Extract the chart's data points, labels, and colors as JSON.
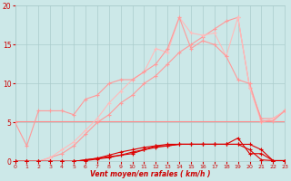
{
  "x": [
    0,
    1,
    2,
    3,
    4,
    5,
    6,
    7,
    8,
    9,
    10,
    11,
    12,
    13,
    14,
    15,
    16,
    17,
    18,
    19,
    20,
    21,
    22,
    23
  ],
  "line_diag1": [
    0,
    0,
    0,
    0.5,
    1.0,
    2.0,
    3.5,
    5.0,
    6.0,
    7.5,
    8.5,
    10.0,
    11.0,
    12.5,
    14.0,
    15.0,
    16.0,
    17.0,
    18.0,
    18.5,
    9.5,
    5.5,
    5.5,
    6.5
  ],
  "line_diag2": [
    0,
    0,
    0,
    0.5,
    1.5,
    2.5,
    4.0,
    5.5,
    7.5,
    9.0,
    10.5,
    11.5,
    14.5,
    14.0,
    18.5,
    16.5,
    16.2,
    16.5,
    13.5,
    18.5,
    9.5,
    5.0,
    5.5,
    6.5
  ],
  "line_diag3": [
    5.0,
    2.0,
    6.5,
    6.5,
    6.5,
    6.0,
    8.0,
    8.5,
    10.0,
    10.5,
    10.5,
    11.5,
    12.5,
    14.5,
    18.5,
    14.5,
    15.5,
    15.0,
    13.5,
    10.5,
    10.0,
    5.2,
    5.2,
    6.5
  ],
  "line_horiz": [
    5.2,
    5.2,
    5.2,
    5.2,
    5.2,
    5.2,
    5.2,
    5.2,
    5.2,
    5.2,
    5.2,
    5.2,
    5.2,
    5.2,
    5.2,
    5.2,
    5.2,
    5.2,
    5.2,
    5.2,
    5.2,
    5.2,
    5.2,
    5.2
  ],
  "line_low1": [
    0,
    0,
    0,
    0,
    0,
    0,
    0.2,
    0.4,
    0.6,
    0.8,
    1.2,
    1.5,
    2.0,
    2.0,
    2.2,
    2.2,
    2.2,
    2.2,
    2.2,
    3.0,
    1.0,
    1.0,
    0.1,
    0.1
  ],
  "line_low2": [
    0,
    0,
    0,
    0,
    0,
    0,
    0.2,
    0.4,
    0.8,
    1.2,
    1.5,
    1.8,
    2.0,
    2.2,
    2.2,
    2.2,
    2.2,
    2.2,
    2.2,
    2.2,
    1.5,
    0.2,
    0.1,
    0.1
  ],
  "line_low3": [
    0,
    0,
    0,
    0,
    0,
    0,
    0.1,
    0.3,
    0.5,
    0.8,
    1.0,
    1.5,
    1.8,
    2.0,
    2.2,
    2.2,
    2.2,
    2.2,
    2.2,
    2.2,
    2.2,
    1.5,
    0.1,
    0.1
  ],
  "bg_color": "#cce8e8",
  "grid_color": "#aacccc",
  "color_light": "#ff9999",
  "color_lighter": "#ffbbbb",
  "color_dark": "#dd0000",
  "color_horiz": "#ff8888",
  "axis_color": "#cc0000",
  "xlabel": "Vent moyen/en rafales ( km/h )",
  "ylim": [
    0,
    20
  ],
  "xlim": [
    0,
    23
  ]
}
